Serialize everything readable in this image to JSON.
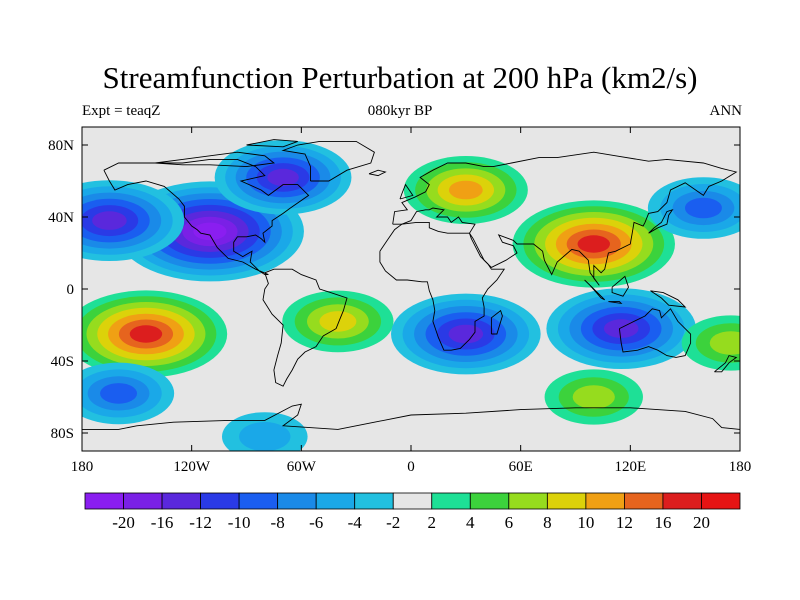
{
  "title": "Streamfunction Perturbation at 200 hPa (km2/s)",
  "left_string": "Expt = teaqZ",
  "center_string": "080kyr BP",
  "right_string": "ANN",
  "map": {
    "projection": "cylindrical-equidistant",
    "lon_range": [
      -180,
      180
    ],
    "lat_range": [
      -90,
      90
    ],
    "x_ticks": [
      {
        "lon": -180,
        "label": "180"
      },
      {
        "lon": -120,
        "label": "120W"
      },
      {
        "lon": -60,
        "label": "60W"
      },
      {
        "lon": 0,
        "label": "0"
      },
      {
        "lon": 60,
        "label": "60E"
      },
      {
        "lon": 120,
        "label": "120E"
      },
      {
        "lon": 180,
        "label": "180"
      }
    ],
    "y_ticks": [
      {
        "lat": 80,
        "label": "80N"
      },
      {
        "lat": 40,
        "label": "40N"
      },
      {
        "lat": 0,
        "label": "0"
      },
      {
        "lat": -40,
        "label": "40S"
      },
      {
        "lat": -80,
        "label": "80S"
      }
    ]
  },
  "colorbar": {
    "labels": [
      "-20",
      "-16",
      "-12",
      "-10",
      "-8",
      "-6",
      "-4",
      "-2",
      "2",
      "4",
      "6",
      "8",
      "10",
      "12",
      "16",
      "20"
    ],
    "colors": [
      "#8a1ef0",
      "#7a20e6",
      "#5a28dc",
      "#2a3ae6",
      "#1a5ef0",
      "#1a8ae8",
      "#1aa8e8",
      "#22c0e0",
      "#e6e6e6",
      "#1ee096",
      "#3cd23c",
      "#96dc1e",
      "#dcd20a",
      "#f0a014",
      "#e6641e",
      "#dc1e1e",
      "#e61414"
    ]
  },
  "chart_data": {
    "type": "heatmap",
    "title": "Streamfunction Perturbation at 200 hPa (km2/s)",
    "units": "km2/s",
    "levels": [
      -20,
      -16,
      -12,
      -10,
      -8,
      -6,
      -4,
      -2,
      2,
      4,
      6,
      8,
      10,
      12,
      16,
      20
    ],
    "features": [
      {
        "lon": -110,
        "lat": 32,
        "value": -20
      },
      {
        "lon": -165,
        "lat": 38,
        "value": -14
      },
      {
        "lon": -70,
        "lat": 62,
        "value": -12
      },
      {
        "lon": -145,
        "lat": -25,
        "value": 16
      },
      {
        "lon": -160,
        "lat": -58,
        "value": -8
      },
      {
        "lon": -40,
        "lat": -18,
        "value": 8
      },
      {
        "lon": 30,
        "lat": 55,
        "value": 10
      },
      {
        "lon": 100,
        "lat": 25,
        "value": 16
      },
      {
        "lon": 30,
        "lat": -25,
        "value": -14
      },
      {
        "lon": 115,
        "lat": -22,
        "value": -14
      },
      {
        "lon": 160,
        "lat": 45,
        "value": -8
      },
      {
        "lon": 175,
        "lat": -30,
        "value": 6
      },
      {
        "lon": 100,
        "lat": -60,
        "value": 6
      },
      {
        "lon": -80,
        "lat": -82,
        "value": -4
      }
    ]
  }
}
